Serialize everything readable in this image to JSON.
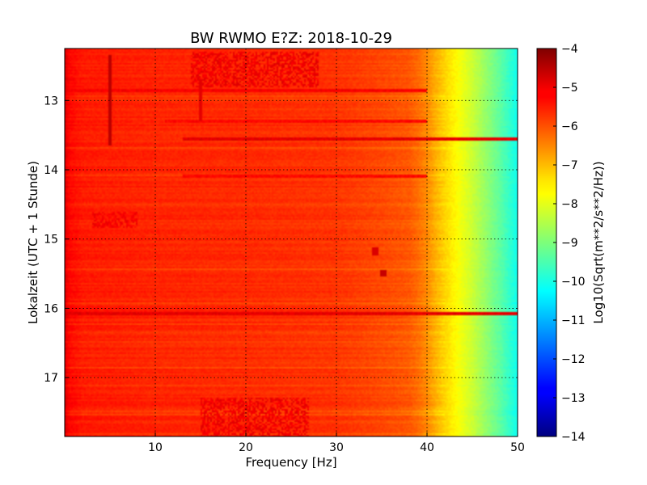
{
  "chart_data": {
    "type": "heatmap",
    "title": "BW RWMO E?Z: 2018-10-29",
    "xlabel": "Frequency [Hz]",
    "ylabel": "Lokalzeit (UTC + 1 Stunde)",
    "xlim": [
      0,
      50
    ],
    "ylim": [
      17.85,
      12.25
    ],
    "x_ticks": [
      10,
      20,
      30,
      40,
      50
    ],
    "y_ticks": [
      13,
      14,
      15,
      16,
      17
    ],
    "grid": true,
    "colorbar": {
      "label": "Log10(Sqrt(m**2/s**2/Hz))",
      "range": [
        -14,
        -4
      ],
      "ticks": [
        -4,
        -5,
        -6,
        -7,
        -8,
        -9,
        -10,
        -11,
        -12,
        -13,
        -14
      ],
      "colormap": "jet"
    },
    "spectrum_by_frequency": {
      "frequency_hz": [
        0,
        0.5,
        2,
        10,
        20,
        30,
        35,
        38,
        39,
        40,
        41,
        42,
        43,
        44,
        45,
        46,
        47,
        48,
        49,
        50
      ],
      "log10_amplitude": [
        -4.9,
        -5.3,
        -5.5,
        -5.6,
        -5.65,
        -5.75,
        -5.95,
        -6.1,
        -6.3,
        -6.6,
        -7.0,
        -7.35,
        -7.65,
        -7.95,
        -8.25,
        -8.6,
        -8.95,
        -9.3,
        -9.7,
        -10.1
      ]
    },
    "features": [
      {
        "kind": "horizontal-band",
        "time": 12.85,
        "freq_range": [
          0,
          40
        ],
        "log10_amplitude": -5.2
      },
      {
        "kind": "horizontal-band",
        "time": 13.3,
        "freq_range": [
          11,
          40
        ],
        "log10_amplitude": -5.3
      },
      {
        "kind": "horizontal-band",
        "time": 13.55,
        "freq_range": [
          13,
          50
        ],
        "log10_amplitude": -5.0
      },
      {
        "kind": "horizontal-band",
        "time": 14.1,
        "freq_range": [
          13,
          40
        ],
        "log10_amplitude": -5.3
      },
      {
        "kind": "horizontal-band",
        "time": 16.08,
        "freq_range": [
          0,
          50
        ],
        "log10_amplitude": -5.0
      },
      {
        "kind": "vertical-line",
        "freq": 5,
        "time_range": [
          12.35,
          13.65
        ],
        "log10_amplitude": -4.6
      },
      {
        "kind": "vertical-line",
        "freq": 15,
        "time_range": [
          12.7,
          13.3
        ],
        "log10_amplitude": -5.0
      },
      {
        "kind": "blob",
        "freq_range": [
          14,
          28
        ],
        "time_range": [
          12.3,
          12.8
        ],
        "log10_amplitude": -5.1
      },
      {
        "kind": "blob",
        "freq_range": [
          15,
          27
        ],
        "time_range": [
          17.3,
          17.85
        ],
        "log10_amplitude": -5.1
      },
      {
        "kind": "blob",
        "freq_range": [
          3,
          8
        ],
        "time_range": [
          14.6,
          14.85
        ],
        "log10_amplitude": -5.2
      },
      {
        "kind": "spot",
        "freq": 35.2,
        "time": 15.5,
        "log10_amplitude": -4.7
      },
      {
        "kind": "spot",
        "freq": 34.3,
        "time": 15.18,
        "log10_amplitude": -4.9
      }
    ]
  }
}
